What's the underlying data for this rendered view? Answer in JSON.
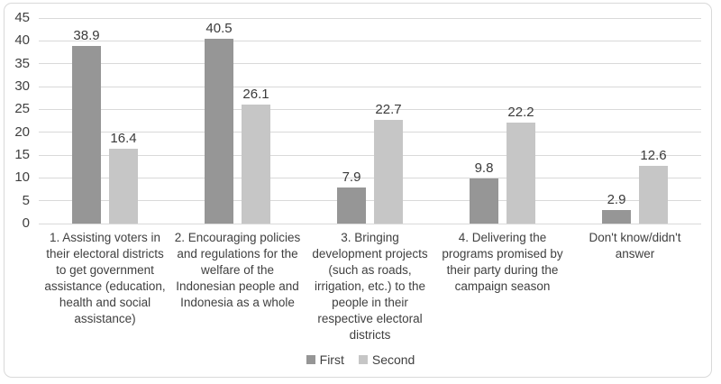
{
  "chart_data": {
    "type": "bar",
    "title": "",
    "xlabel": "",
    "ylabel": "",
    "categories": [
      "1. Assisting voters in their electoral districts to get government assistance (education, health and social assistance)",
      "2. Encouraging policies and regulations for the welfare of the Indonesian people and Indonesia as a whole",
      "3. Bringing development projects (such as roads, irrigation, etc.) to the people in their respective electoral districts",
      "4. Delivering the programs promised by their party during the campaign season",
      "Don't know/didn't answer"
    ],
    "series": [
      {
        "name": "First",
        "color": "#969696",
        "values": [
          38.9,
          40.5,
          7.9,
          9.8,
          2.9
        ]
      },
      {
        "name": "Second",
        "color": "#c6c6c6",
        "values": [
          16.4,
          26.1,
          22.7,
          22.2,
          12.6
        ]
      }
    ],
    "ylim": [
      0,
      45
    ],
    "ytick_step": 5,
    "grid": true,
    "data_labels": true,
    "legend_position": "bottom"
  },
  "colors": {
    "gridline": "#d9d9d9",
    "frame_border": "#d9d9d9",
    "text": "#3f3f3f",
    "background": "#ffffff"
  }
}
